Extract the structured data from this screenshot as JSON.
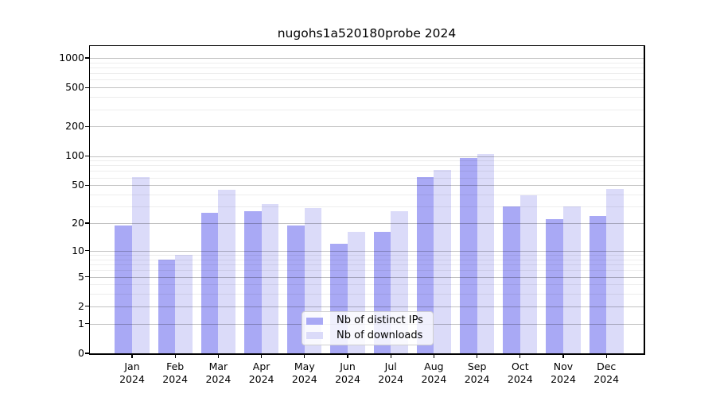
{
  "title": "nugohs1a520180probe 2024",
  "colors": {
    "distinct_ips_bar": "#a9a9f5",
    "downloads_bar": "#dbdbf9",
    "grid_major": "rgba(0,0,0,0.24)",
    "grid_minor": "rgba(0,0,0,0.07)",
    "axis": "#000000",
    "background": "#ffffff"
  },
  "legend": {
    "items": [
      {
        "label": "Nb of distinct IPs"
      },
      {
        "label": "Nb of downloads"
      }
    ]
  },
  "chart_data": {
    "type": "bar",
    "title": "nugohs1a520180probe 2024",
    "xlabel": "",
    "ylabel": "",
    "yscale": "log1p",
    "grid": "horizontal",
    "legend_position": "lower center",
    "categories": [
      "Jan 2024",
      "Feb 2024",
      "Mar 2024",
      "Apr 2024",
      "May 2024",
      "Jun 2024",
      "Jul 2024",
      "Aug 2024",
      "Sep 2024",
      "Oct 2024",
      "Nov 2024",
      "Dec 2024"
    ],
    "series": [
      {
        "key": "distinct-ips",
        "name": "Nb of distinct IPs",
        "color": "#a9a9f5",
        "values": [
          19,
          8,
          26,
          27,
          19,
          12,
          16,
          61,
          95,
          30,
          22,
          24
        ]
      },
      {
        "key": "downloads",
        "name": "Nb of downloads",
        "color": "#dbdbf9",
        "values": [
          61,
          9,
          45,
          32,
          29,
          16,
          27,
          72,
          104,
          39,
          30,
          46
        ]
      }
    ],
    "y_ticks": [
      0,
      1,
      2,
      5,
      10,
      20,
      50,
      100,
      200,
      500,
      1000
    ],
    "y_minor_ticks": [
      3,
      4,
      6,
      7,
      8,
      9,
      30,
      40,
      60,
      70,
      80,
      90,
      300,
      400,
      600,
      700,
      800,
      900
    ],
    "ylim": [
      0,
      1320
    ]
  }
}
